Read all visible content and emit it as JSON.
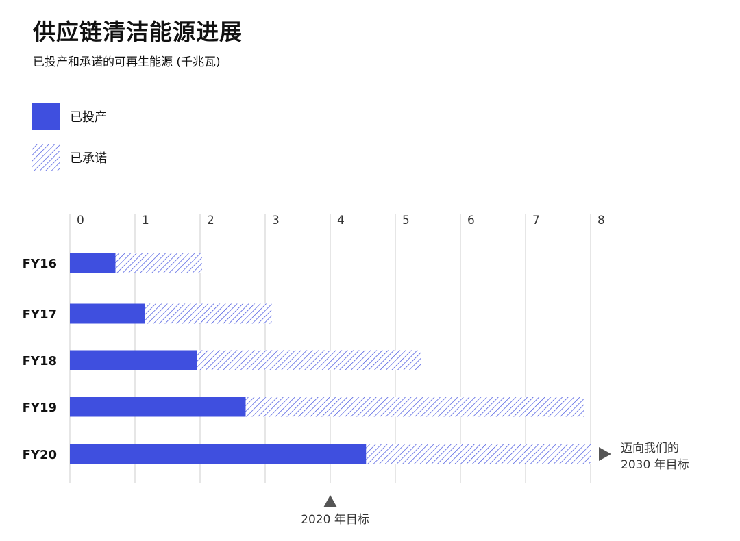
{
  "title": "供应链清洁能源进展",
  "subtitle": "已投产和承诺的可再生能源 (千兆瓦)",
  "legend": [
    {
      "label": "已投产",
      "style": "solid"
    },
    {
      "label": "已承诺",
      "style": "hatched"
    }
  ],
  "colors": {
    "accent": "#3F4FDF",
    "grid": "#CCCCCC",
    "marker": "#555555"
  },
  "chart_data": {
    "type": "bar",
    "orientation": "horizontal",
    "stacked": true,
    "title": "供应链清洁能源进展",
    "subtitle": "已投产和承诺的可再生能源 (千兆瓦)",
    "xlabel": "",
    "ylabel": "",
    "xlim": [
      0,
      8
    ],
    "ticks": [
      "0",
      "1",
      "2",
      "3",
      "4",
      "5",
      "6",
      "7",
      "8"
    ],
    "categories": [
      "FY16",
      "FY17",
      "FY18",
      "FY19",
      "FY20"
    ],
    "series": [
      {
        "name": "已投产",
        "values": [
          0.7,
          1.15,
          1.95,
          2.7,
          4.55
        ]
      },
      {
        "name": "已承诺",
        "values": [
          1.33,
          1.95,
          3.45,
          5.2,
          3.45
        ]
      }
    ],
    "annotations": {
      "target_2020": {
        "value": 4,
        "label": "2020 年目标"
      },
      "target_2030": {
        "line1": "迈向我们的",
        "line2": "2030 年目标"
      }
    },
    "legend_position": "top-left"
  }
}
